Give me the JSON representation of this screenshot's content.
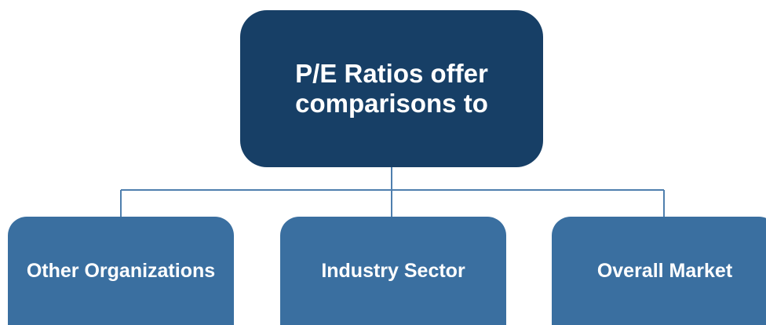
{
  "root": {
    "label": "P/E Ratios offer comparisons to"
  },
  "nodes": [
    {
      "label": "Other Organizations"
    },
    {
      "label": "Industry Sector"
    },
    {
      "label": "Overall Market"
    }
  ]
}
